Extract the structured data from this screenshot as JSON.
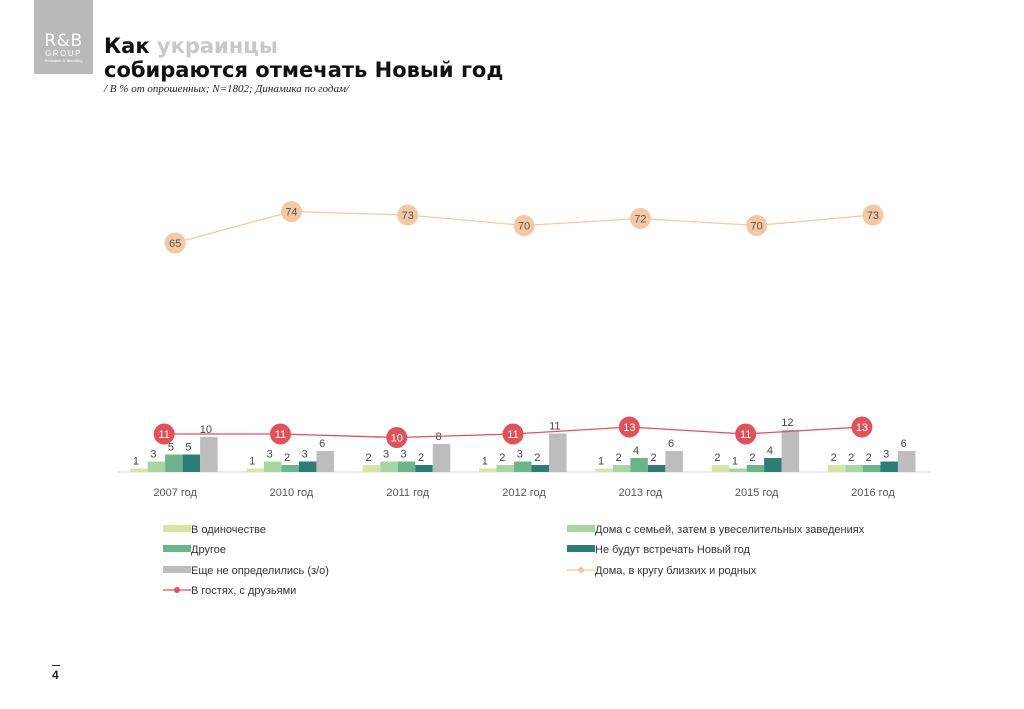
{
  "logo": {
    "main": "R&B",
    "sub": "GROUP",
    "tagline": "Research & Branding"
  },
  "title": {
    "line1_dark": "Как",
    "line1_grey": "украинцы",
    "line2": "собираются отмечать Новый год"
  },
  "subtitle": "/ В % от опрошенных; N=1802; Динамика по годам/",
  "page_number": "4",
  "chart_data": {
    "type": "bar",
    "categories": [
      "2007 год",
      "2010 год",
      "2011 год",
      "2012 год",
      "2013 год",
      "2015 год",
      "2016 год"
    ],
    "series": [
      {
        "name": "В одиночестве",
        "kind": "bar",
        "color": "#d6e6a6",
        "values": [
          1,
          1,
          2,
          1,
          1,
          2,
          2
        ]
      },
      {
        "name": "Дома с семьей, затем в увеселительных заведениях",
        "kind": "bar",
        "color": "#a7d6a4",
        "values": [
          3,
          3,
          3,
          2,
          2,
          1,
          2
        ]
      },
      {
        "name": "Другое",
        "kind": "bar",
        "color": "#6bb58d",
        "values": [
          5,
          2,
          3,
          3,
          4,
          2,
          2
        ]
      },
      {
        "name": "Не будут встречать Новый год",
        "kind": "bar",
        "color": "#2f7b75",
        "values": [
          5,
          3,
          2,
          2,
          2,
          4,
          3
        ]
      },
      {
        "name": "Еще не определились (з/о)",
        "kind": "bar",
        "color": "#bdbdbd",
        "values": [
          10,
          6,
          8,
          11,
          6,
          12,
          6
        ]
      },
      {
        "name": "Дома, в кругу близких и родных",
        "kind": "line",
        "color": "#f5c8a4",
        "values": [
          65,
          74,
          73,
          70,
          72,
          70,
          73
        ]
      },
      {
        "name": "В гостях, с друзьями",
        "kind": "line",
        "color": "#e0525a",
        "values": [
          11,
          11,
          10,
          11,
          13,
          11,
          13
        ]
      }
    ],
    "legend_position": "bottom",
    "grid": false
  }
}
